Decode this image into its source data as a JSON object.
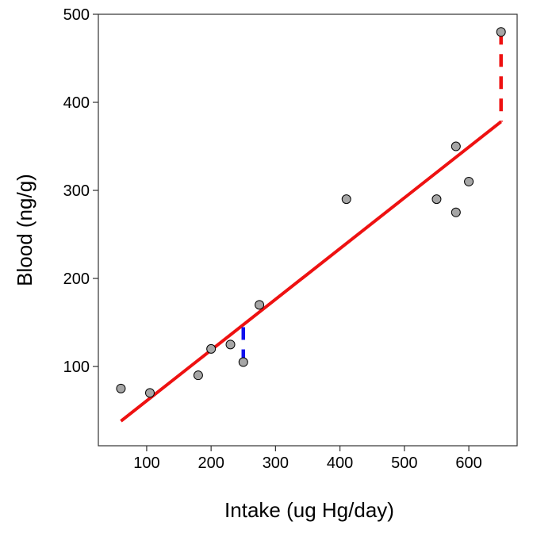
{
  "chart_data": {
    "type": "scatter",
    "title": "",
    "xlabel": "Intake (ug Hg/day)",
    "ylabel": "Blood (ng/g)",
    "xlim": [
      25,
      675
    ],
    "ylim": [
      10,
      500
    ],
    "xticks": [
      100,
      200,
      300,
      400,
      500,
      600
    ],
    "yticks": [
      100,
      200,
      300,
      400,
      500
    ],
    "grid": false,
    "legend": "none",
    "points": {
      "x": [
        60,
        105,
        180,
        200,
        230,
        250,
        275,
        410,
        550,
        580,
        580,
        600,
        650
      ],
      "y": [
        75,
        70,
        90,
        120,
        125,
        105,
        170,
        290,
        290,
        350,
        275,
        310,
        480
      ],
      "fill_color": "#a6a6a6",
      "stroke_color": "#000000"
    },
    "fit_line": {
      "x": [
        60,
        650
      ],
      "y": [
        38,
        378
      ],
      "color": "#ee1111"
    },
    "residuals": [
      {
        "x": 250,
        "y_from": 105,
        "y_to": 145,
        "color": "#1111ee"
      },
      {
        "x": 650,
        "y_from": 480,
        "y_to": 378,
        "color": "#ee1111"
      }
    ]
  }
}
